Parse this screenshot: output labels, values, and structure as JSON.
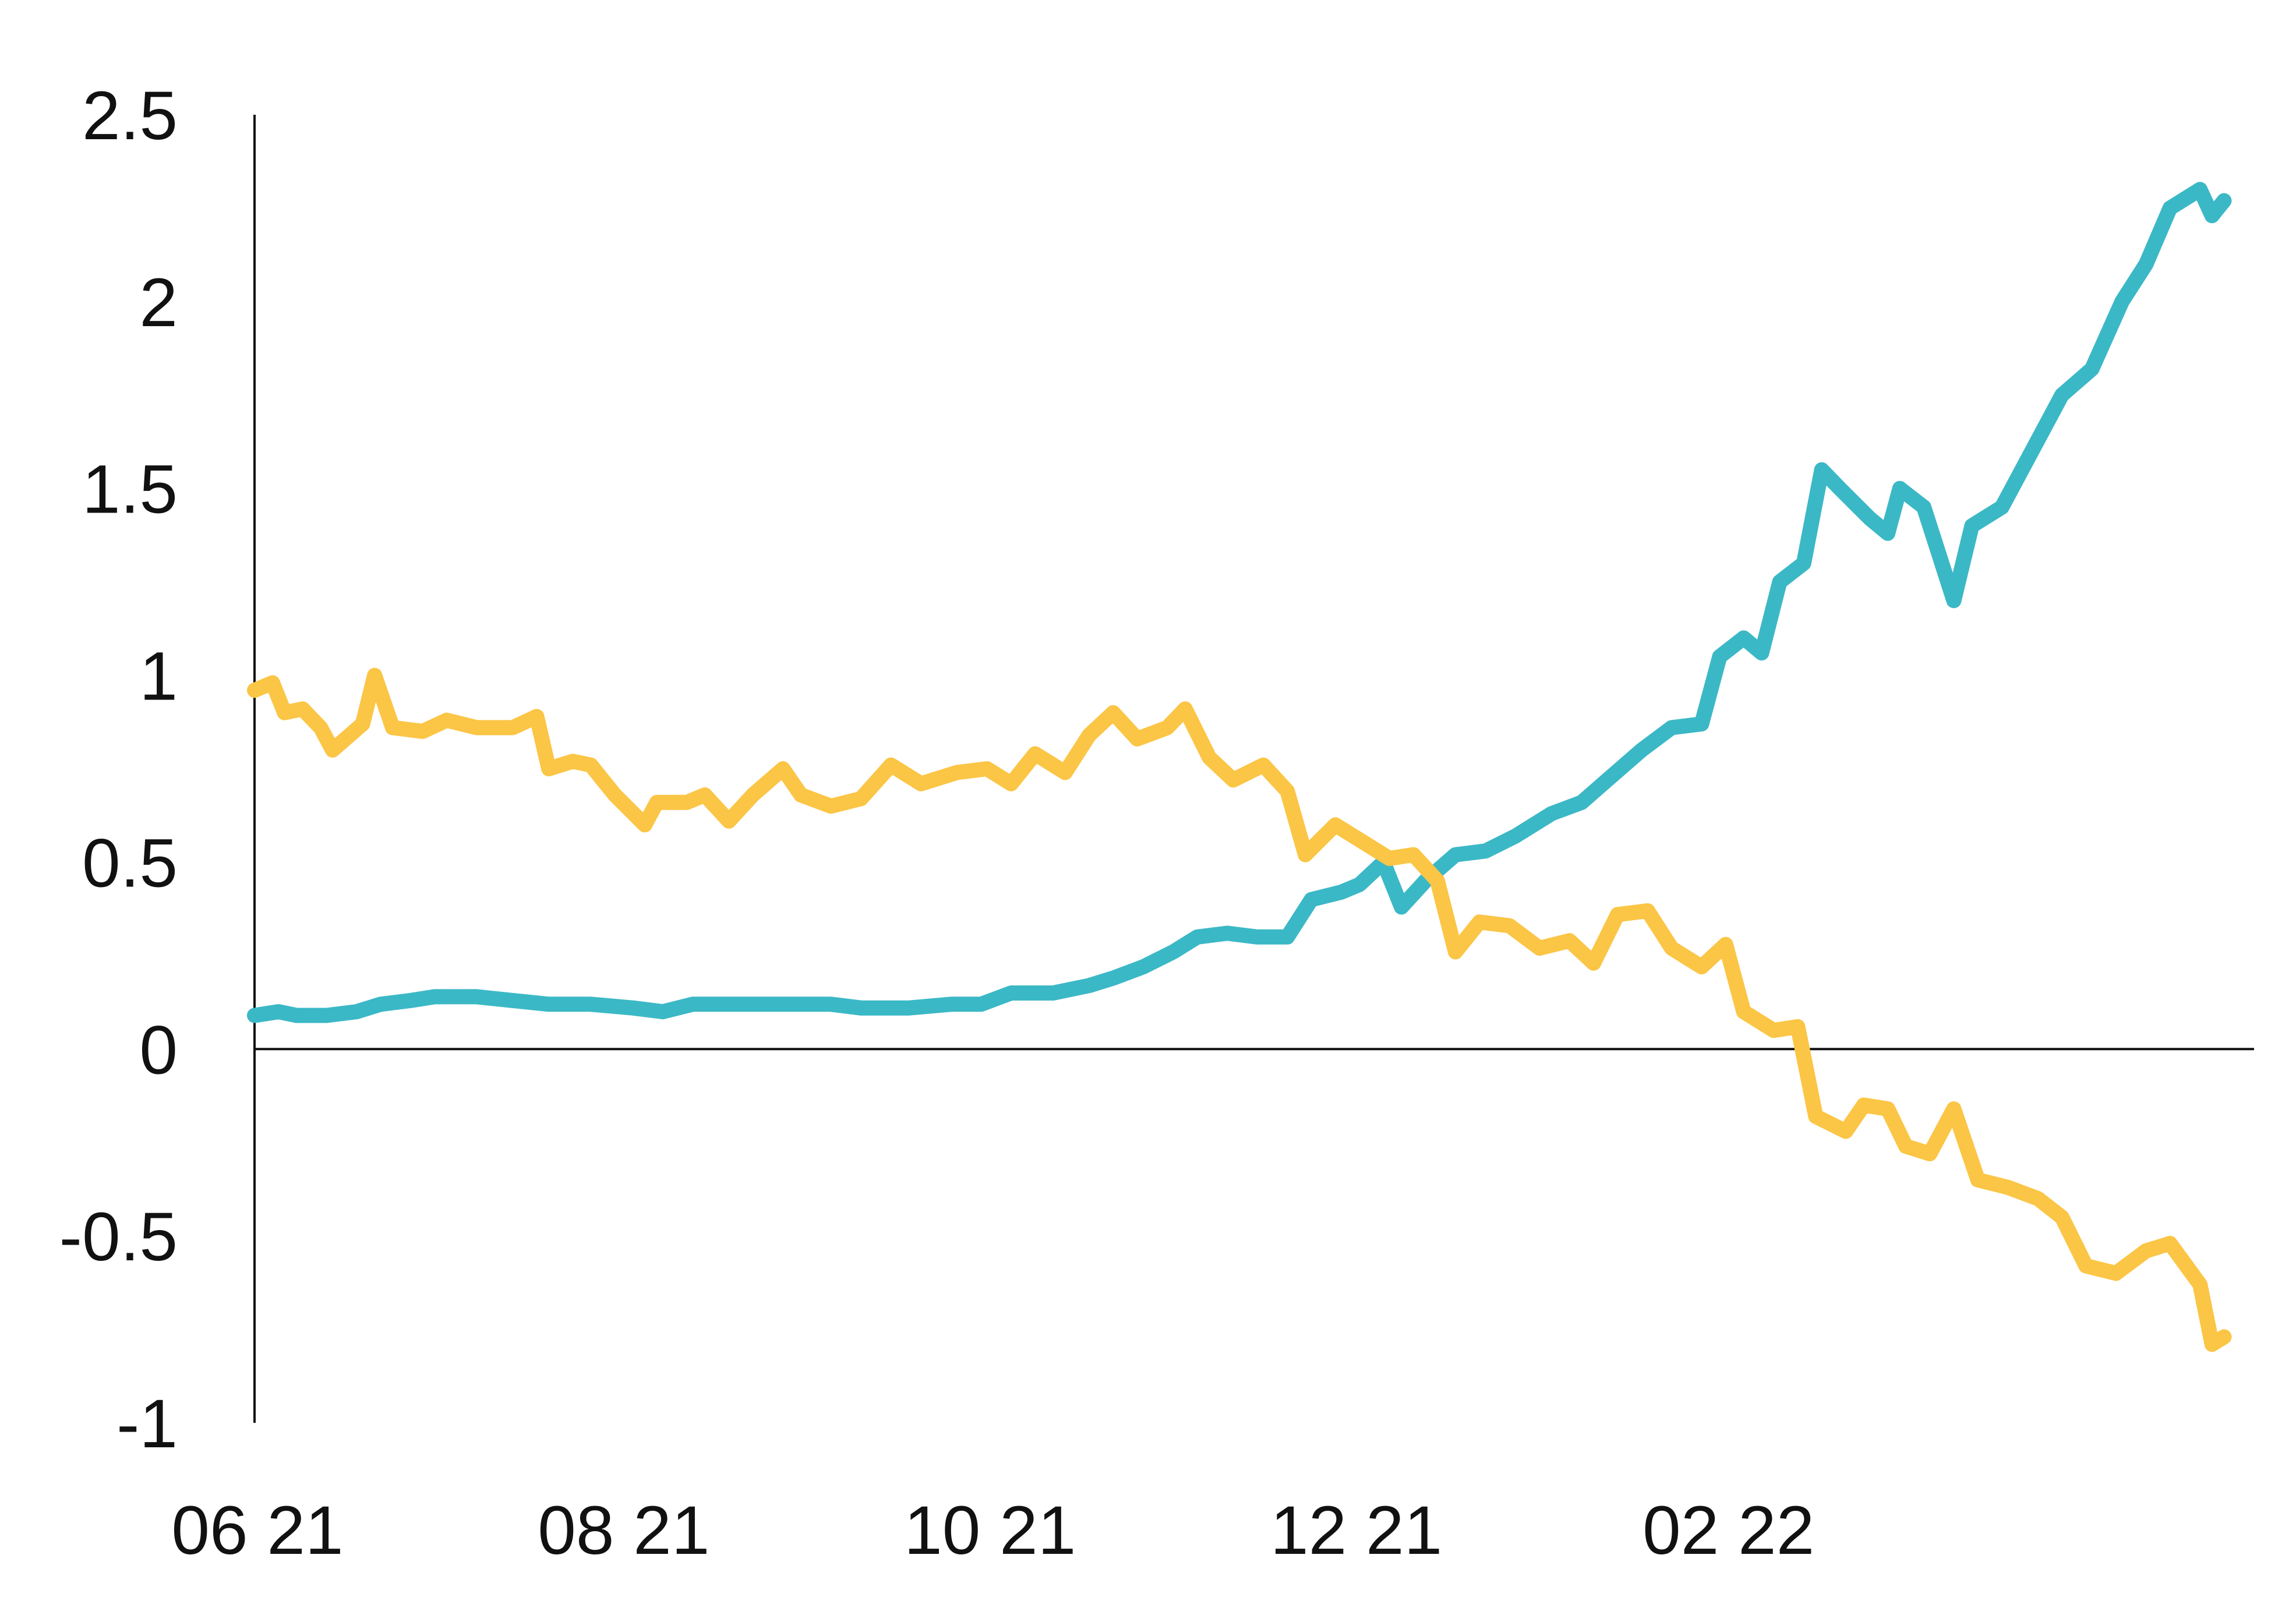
{
  "chart_data": {
    "type": "line",
    "title": "",
    "xlabel": "",
    "ylabel": "",
    "ylim": [
      -1,
      2.5
    ],
    "yticks": [
      "2.5",
      "2",
      "1.5",
      "1",
      "0.5",
      "0",
      "-0.5",
      "-1"
    ],
    "ytick_values": [
      2.5,
      2,
      1.5,
      1,
      0.5,
      0,
      -0.5,
      -1
    ],
    "xticks": [
      "06 21",
      "08 21",
      "10 21",
      "12 21",
      "02 22"
    ],
    "xtick_values": [
      "2021-06-01",
      "2021-08-01",
      "2021-10-01",
      "2021-12-01",
      "2022-02-01"
    ],
    "xlim": [
      "2021-06-01",
      "2022-04-30"
    ],
    "grid": false,
    "legend": "none",
    "series": [
      {
        "color": "#3BB8C6",
        "points": [
          [
            "2021-06-01",
            0.09
          ],
          [
            "2021-06-05",
            0.1
          ],
          [
            "2021-06-08",
            0.09
          ],
          [
            "2021-06-13",
            0.09
          ],
          [
            "2021-06-18",
            0.1
          ],
          [
            "2021-06-22",
            0.12
          ],
          [
            "2021-06-27",
            0.13
          ],
          [
            "2021-07-01",
            0.14
          ],
          [
            "2021-07-08",
            0.14
          ],
          [
            "2021-07-14",
            0.13
          ],
          [
            "2021-07-20",
            0.12
          ],
          [
            "2021-07-27",
            0.12
          ],
          [
            "2021-08-03",
            0.11
          ],
          [
            "2021-08-08",
            0.1
          ],
          [
            "2021-08-13",
            0.12
          ],
          [
            "2021-08-20",
            0.12
          ],
          [
            "2021-08-28",
            0.12
          ],
          [
            "2021-09-05",
            0.12
          ],
          [
            "2021-09-10",
            0.11
          ],
          [
            "2021-09-18",
            0.11
          ],
          [
            "2021-09-25",
            0.12
          ],
          [
            "2021-09-30",
            0.12
          ],
          [
            "2021-10-05",
            0.15
          ],
          [
            "2021-10-12",
            0.15
          ],
          [
            "2021-10-18",
            0.17
          ],
          [
            "2021-10-22",
            0.19
          ],
          [
            "2021-10-27",
            0.22
          ],
          [
            "2021-11-01",
            0.26
          ],
          [
            "2021-11-05",
            0.3
          ],
          [
            "2021-11-10",
            0.31
          ],
          [
            "2021-11-15",
            0.3
          ],
          [
            "2021-11-20",
            0.3
          ],
          [
            "2021-11-24",
            0.4
          ],
          [
            "2021-11-29",
            0.42
          ],
          [
            "2021-12-02",
            0.44
          ],
          [
            "2021-12-06",
            0.5
          ],
          [
            "2021-12-09",
            0.38
          ],
          [
            "2021-12-13",
            0.45
          ],
          [
            "2021-12-18",
            0.52
          ],
          [
            "2021-12-23",
            0.53
          ],
          [
            "2021-12-28",
            0.57
          ],
          [
            "2022-01-03",
            0.63
          ],
          [
            "2022-01-08",
            0.66
          ],
          [
            "2022-01-13",
            0.73
          ],
          [
            "2022-01-18",
            0.8
          ],
          [
            "2022-01-23",
            0.86
          ],
          [
            "2022-01-28",
            0.87
          ],
          [
            "2022-01-31",
            1.05
          ],
          [
            "2022-02-04",
            1.1
          ],
          [
            "2022-02-07",
            1.06
          ],
          [
            "2022-02-10",
            1.25
          ],
          [
            "2022-02-14",
            1.3
          ],
          [
            "2022-02-17",
            1.55
          ],
          [
            "2022-02-20",
            1.5
          ],
          [
            "2022-02-25",
            1.42
          ],
          [
            "2022-02-28",
            1.38
          ],
          [
            "2022-03-02",
            1.5
          ],
          [
            "2022-03-06",
            1.45
          ],
          [
            "2022-03-11",
            1.2
          ],
          [
            "2022-03-14",
            1.4
          ],
          [
            "2022-03-19",
            1.45
          ],
          [
            "2022-03-24",
            1.6
          ],
          [
            "2022-03-29",
            1.75
          ],
          [
            "2022-04-03",
            1.82
          ],
          [
            "2022-04-08",
            2.0
          ],
          [
            "2022-04-12",
            2.1
          ],
          [
            "2022-04-16",
            2.25
          ],
          [
            "2022-04-21",
            2.3
          ],
          [
            "2022-04-23",
            2.23
          ],
          [
            "2022-04-25",
            2.27
          ]
        ]
      },
      {
        "color": "#FBC545",
        "points": [
          [
            "2021-06-01",
            0.96
          ],
          [
            "2021-06-04",
            0.98
          ],
          [
            "2021-06-06",
            0.9
          ],
          [
            "2021-06-09",
            0.91
          ],
          [
            "2021-06-12",
            0.86
          ],
          [
            "2021-06-14",
            0.8
          ],
          [
            "2021-06-19",
            0.87
          ],
          [
            "2021-06-21",
            1.0
          ],
          [
            "2021-06-24",
            0.86
          ],
          [
            "2021-06-29",
            0.85
          ],
          [
            "2021-07-03",
            0.88
          ],
          [
            "2021-07-08",
            0.86
          ],
          [
            "2021-07-14",
            0.86
          ],
          [
            "2021-07-18",
            0.89
          ],
          [
            "2021-07-20",
            0.75
          ],
          [
            "2021-07-24",
            0.77
          ],
          [
            "2021-07-27",
            0.76
          ],
          [
            "2021-07-31",
            0.68
          ],
          [
            "2021-08-05",
            0.6
          ],
          [
            "2021-08-07",
            0.66
          ],
          [
            "2021-08-12",
            0.66
          ],
          [
            "2021-08-15",
            0.68
          ],
          [
            "2021-08-19",
            0.61
          ],
          [
            "2021-08-23",
            0.68
          ],
          [
            "2021-08-28",
            0.75
          ],
          [
            "2021-08-31",
            0.68
          ],
          [
            "2021-09-05",
            0.65
          ],
          [
            "2021-09-10",
            0.67
          ],
          [
            "2021-09-15",
            0.76
          ],
          [
            "2021-09-20",
            0.71
          ],
          [
            "2021-09-26",
            0.74
          ],
          [
            "2021-10-01",
            0.75
          ],
          [
            "2021-10-05",
            0.71
          ],
          [
            "2021-10-09",
            0.79
          ],
          [
            "2021-10-14",
            0.74
          ],
          [
            "2021-10-18",
            0.84
          ],
          [
            "2021-10-22",
            0.9
          ],
          [
            "2021-10-26",
            0.83
          ],
          [
            "2021-10-31",
            0.86
          ],
          [
            "2021-11-03",
            0.91
          ],
          [
            "2021-11-07",
            0.78
          ],
          [
            "2021-11-11",
            0.72
          ],
          [
            "2021-11-16",
            0.76
          ],
          [
            "2021-11-20",
            0.69
          ],
          [
            "2021-11-23",
            0.52
          ],
          [
            "2021-11-28",
            0.6
          ],
          [
            "2021-12-03",
            0.55
          ],
          [
            "2021-12-07",
            0.51
          ],
          [
            "2021-12-11",
            0.52
          ],
          [
            "2021-12-15",
            0.45
          ],
          [
            "2021-12-18",
            0.26
          ],
          [
            "2021-12-22",
            0.34
          ],
          [
            "2021-12-27",
            0.33
          ],
          [
            "2022-01-01",
            0.27
          ],
          [
            "2022-01-06",
            0.29
          ],
          [
            "2022-01-10",
            0.23
          ],
          [
            "2022-01-14",
            0.36
          ],
          [
            "2022-01-19",
            0.37
          ],
          [
            "2022-01-23",
            0.27
          ],
          [
            "2022-01-28",
            0.22
          ],
          [
            "2022-02-01",
            0.28
          ],
          [
            "2022-02-04",
            0.1
          ],
          [
            "2022-02-09",
            0.05
          ],
          [
            "2022-02-13",
            0.06
          ],
          [
            "2022-02-16",
            -0.18
          ],
          [
            "2022-02-21",
            -0.22
          ],
          [
            "2022-02-24",
            -0.15
          ],
          [
            "2022-02-28",
            -0.16
          ],
          [
            "2022-03-03",
            -0.26
          ],
          [
            "2022-03-07",
            -0.28
          ],
          [
            "2022-03-11",
            -0.16
          ],
          [
            "2022-03-15",
            -0.35
          ],
          [
            "2022-03-20",
            -0.37
          ],
          [
            "2022-03-25",
            -0.4
          ],
          [
            "2022-03-29",
            -0.45
          ],
          [
            "2022-04-02",
            -0.58
          ],
          [
            "2022-04-07",
            -0.6
          ],
          [
            "2022-04-12",
            -0.54
          ],
          [
            "2022-04-16",
            -0.52
          ],
          [
            "2022-04-21",
            -0.63
          ],
          [
            "2022-04-23",
            -0.79
          ],
          [
            "2022-04-25",
            -0.77
          ]
        ]
      }
    ]
  }
}
